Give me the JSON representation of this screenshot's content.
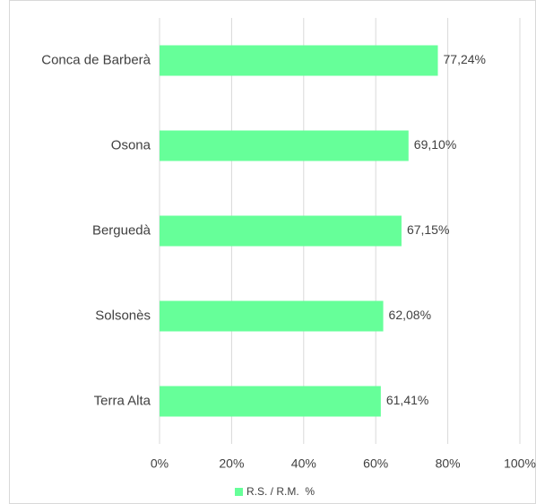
{
  "chart_data": {
    "type": "bar",
    "orientation": "horizontal",
    "categories": [
      "Conca de Barberà",
      "Osona",
      "Berguedà",
      "Solsonès",
      "Terra Alta"
    ],
    "series": [
      {
        "name": "R.S. / R.M.  %",
        "color": "#66ff99",
        "values": [
          77.24,
          69.1,
          67.15,
          62.08,
          61.41
        ],
        "value_labels": [
          "77,24%",
          "69,10%",
          "67,15%",
          "62,08%",
          "61,41%"
        ]
      }
    ],
    "xlim": [
      0,
      100
    ],
    "xticks": [
      {
        "value": 0,
        "label": "0%"
      },
      {
        "value": 20,
        "label": "20%"
      },
      {
        "value": 40,
        "label": "40%"
      },
      {
        "value": 60,
        "label": "60%"
      },
      {
        "value": 80,
        "label": "80%"
      },
      {
        "value": 100,
        "label": "100%"
      }
    ],
    "grid": true,
    "legend": "bottom"
  }
}
